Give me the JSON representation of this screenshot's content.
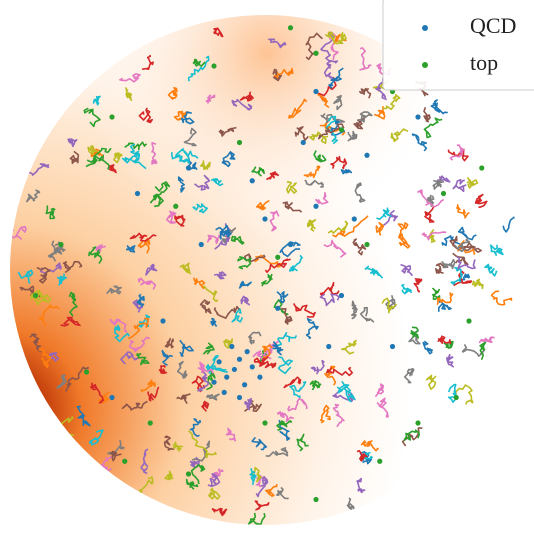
{
  "chart_data": {
    "type": "scatter",
    "xlim": [
      -1,
      1
    ],
    "ylim": [
      -1,
      1
    ],
    "series": [
      {
        "name": "QCD",
        "color": "#1f77b4",
        "x": [
          -0.12,
          -0.1,
          -0.15,
          -0.08,
          -0.18,
          -0.05,
          -0.2,
          -0.13,
          -0.1,
          -0.02,
          -0.16,
          -0.07,
          0.1,
          0.2,
          -0.3,
          0.3,
          0.0,
          -0.4,
          0.4,
          0.05,
          0.25,
          -0.25,
          0.15,
          0.35,
          -0.5,
          0.5,
          -0.05,
          0.6,
          0.2,
          -0.6
        ],
        "y": [
          -0.39,
          -0.35,
          -0.42,
          -0.45,
          -0.36,
          -0.38,
          -0.44,
          -0.3,
          -0.5,
          -0.42,
          -0.48,
          -0.32,
          0.1,
          0.25,
          0.4,
          -0.1,
          0.2,
          -0.2,
          0.45,
          -0.15,
          -0.3,
          0.1,
          0.5,
          0.2,
          0.3,
          -0.3,
          0.35,
          0.6,
          0.7,
          -0.5
        ]
      },
      {
        "name": "top",
        "color": "#2ca02c",
        "x": [
          0.1,
          0.2,
          -0.2,
          0.5,
          -0.6,
          0.7,
          -0.8,
          0.8,
          -0.7,
          0.6,
          -0.3,
          0.2,
          0.4,
          -0.1,
          0.0,
          -0.45,
          0.75,
          -0.9,
          0.3,
          -0.35,
          0.85,
          -0.55,
          0.45,
          0.05
        ],
        "y": [
          0.95,
          0.85,
          0.8,
          0.7,
          0.6,
          0.3,
          0.1,
          -0.2,
          -0.4,
          -0.6,
          -0.8,
          -0.9,
          0.1,
          0.5,
          -0.6,
          -0.6,
          -0.5,
          -0.1,
          0.55,
          0.25,
          0.4,
          -0.75,
          -0.75,
          0.05
        ]
      }
    ]
  }
}
